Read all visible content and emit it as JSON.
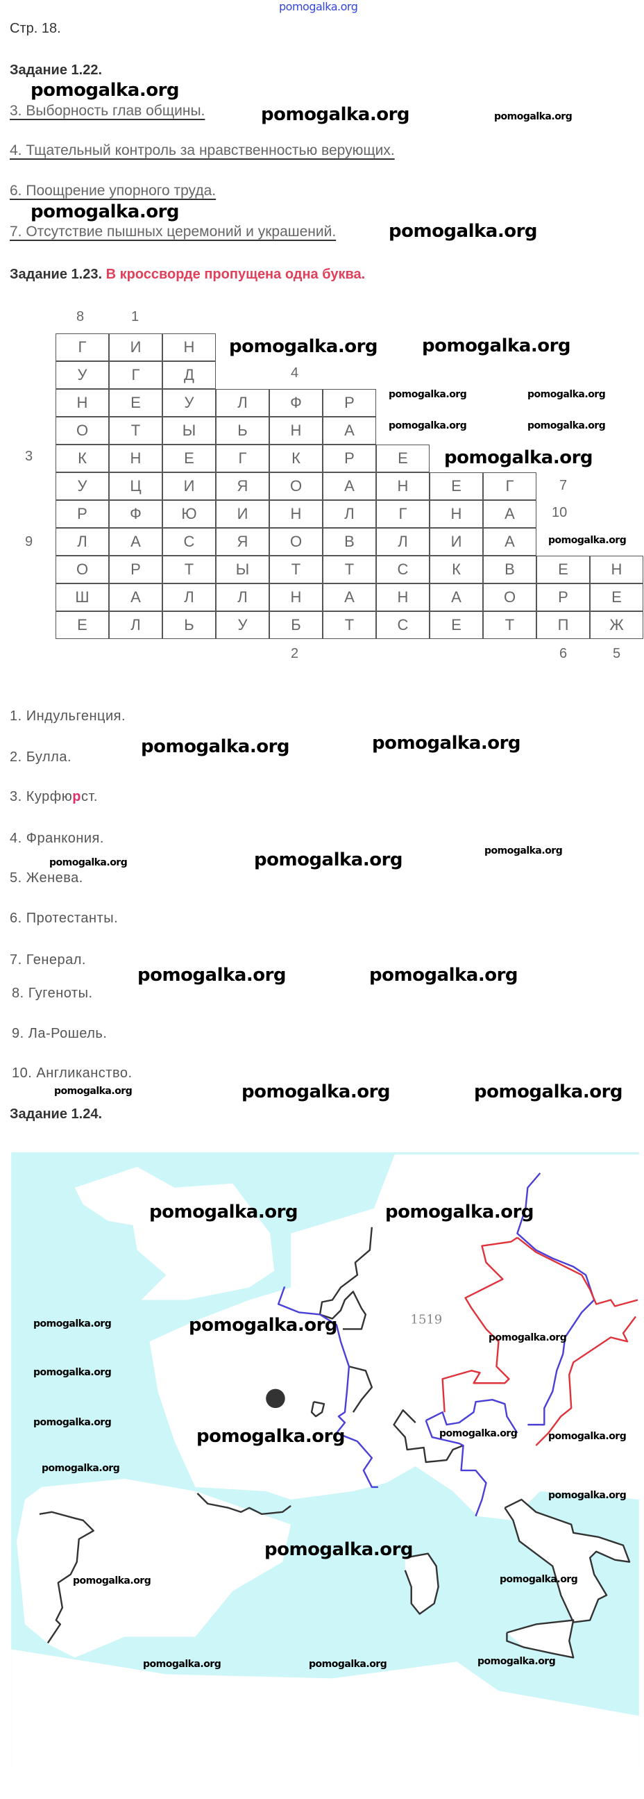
{
  "watermark": "pomogalka.org",
  "page_label": "Стр. 18.",
  "task_1_22": {
    "title": "Задание 1.22.",
    "answers": [
      "3. Выборность глав общины.",
      "4. Тщательный контроль за нравственностью верующих.",
      "6. Поощрение упорного труда.",
      "7. Отсутствие пышных церемоний и украшений."
    ]
  },
  "task_1_23": {
    "title": "Задание 1.23.",
    "note": "В кроссворде пропущена одна буква.",
    "crossword": {
      "rows": [
        [
          "Г",
          "И",
          "Н"
        ],
        [
          "У",
          "Г",
          "Д"
        ],
        [
          "Н",
          "Е",
          "У",
          "Л",
          "Ф",
          "Р"
        ],
        [
          "О",
          "Т",
          "Ы",
          "Ь",
          "Н",
          "А"
        ],
        [
          "К",
          "Н",
          "Е",
          "Г",
          "К",
          "Р",
          "Е"
        ],
        [
          "У",
          "Ц",
          "И",
          "Я",
          "О",
          "А",
          "Н",
          "Е",
          "Г"
        ],
        [
          "Р",
          "Ф",
          "Ю",
          "И",
          "Н",
          "Л",
          "Г",
          "Н",
          "А"
        ],
        [
          "Л",
          "А",
          "С",
          "Я",
          "О",
          "В",
          "Л",
          "И",
          "А"
        ],
        [
          "О",
          "Р",
          "Т",
          "Ы",
          "Т",
          "Т",
          "С",
          "К",
          "В",
          "Е",
          "Н"
        ],
        [
          "Ш",
          "А",
          "Л",
          "Л",
          "Н",
          "А",
          "Н",
          "А",
          "О",
          "Р",
          "Е"
        ],
        [
          "Е",
          "Л",
          "Ь",
          "У",
          "Б",
          "Т",
          "С",
          "Е",
          "Т",
          "П",
          "Ж"
        ]
      ],
      "numbers": [
        "8",
        "1",
        "4",
        "3",
        "7",
        "10",
        "9",
        "2",
        "6",
        "5"
      ]
    },
    "answers": [
      {
        "pre": "1. Индульгенция.",
        "hl": "",
        "post": ""
      },
      {
        "pre": "2. Булла.",
        "hl": "",
        "post": ""
      },
      {
        "pre": "3. Курфю",
        "hl": "р",
        "post": "ст."
      },
      {
        "pre": "4. Франкония.",
        "hl": "",
        "post": ""
      },
      {
        "pre": "5. Женева.",
        "hl": "",
        "post": ""
      },
      {
        "pre": "6. Протестанты.",
        "hl": "",
        "post": ""
      },
      {
        "pre": "7. Генерал.",
        "hl": "",
        "post": ""
      },
      {
        "pre": "8. Гугеноты.",
        "hl": "",
        "post": ""
      },
      {
        "pre": "9. Ла-Рошель.",
        "hl": "",
        "post": ""
      },
      {
        "pre": "10. Англиканство.",
        "hl": "",
        "post": ""
      }
    ]
  },
  "task_1_24": {
    "title": "Задание 1.24.",
    "map_label": "1519",
    "colors": {
      "sea": "#cdf6f9",
      "land": "#ffffff",
      "border_black": "#333333",
      "border_blue": "#4a3fd6",
      "border_red": "#e0323a"
    }
  }
}
